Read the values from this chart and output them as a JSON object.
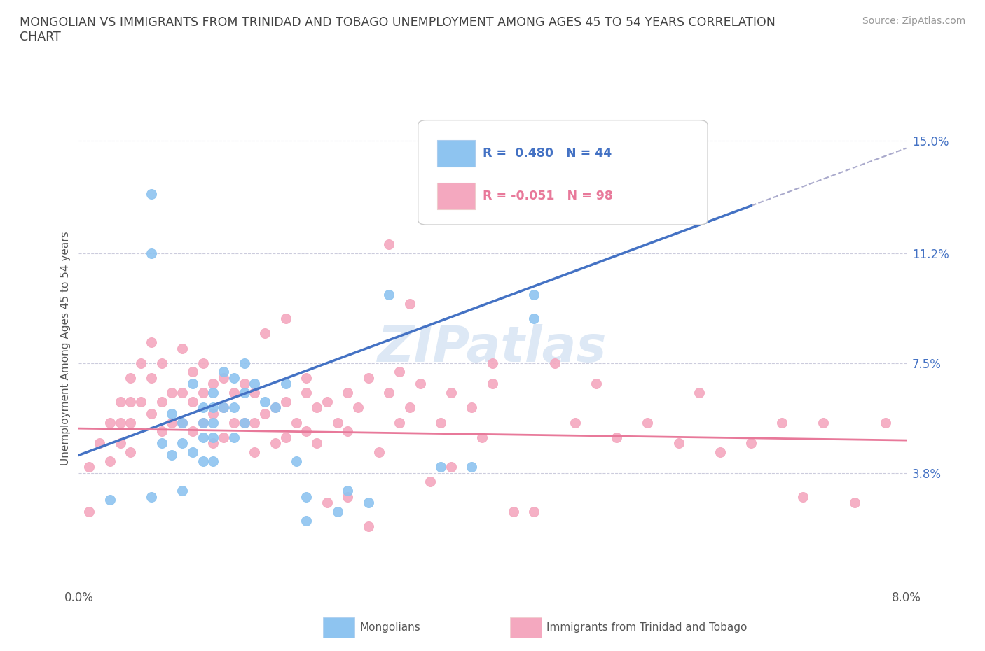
{
  "title": "MONGOLIAN VS IMMIGRANTS FROM TRINIDAD AND TOBAGO UNEMPLOYMENT AMONG AGES 45 TO 54 YEARS CORRELATION\nCHART",
  "source_text": "Source: ZipAtlas.com",
  "ylabel": "Unemployment Among Ages 45 to 54 years",
  "xlim": [
    0.0,
    0.08
  ],
  "ylim": [
    0.0,
    0.16
  ],
  "xtick_positions": [
    0.0,
    0.01,
    0.02,
    0.03,
    0.04,
    0.05,
    0.06,
    0.07,
    0.08
  ],
  "xticklabels": [
    "0.0%",
    "",
    "",
    "",
    "",
    "",
    "",
    "",
    "8.0%"
  ],
  "ytick_positions": [
    0.038,
    0.075,
    0.112,
    0.15
  ],
  "ytick_labels": [
    "3.8%",
    "7.5%",
    "11.2%",
    "15.0%"
  ],
  "mongolian_R": 0.48,
  "mongolian_N": 44,
  "tt_R": -0.051,
  "tt_N": 98,
  "mongolian_color": "#8EC4F0",
  "tt_color": "#F4A8BF",
  "mongolian_line_color": "#4472C4",
  "tt_line_color": "#E8799A",
  "background_color": "#FFFFFF",
  "mongolian_line_x0": 0.0,
  "mongolian_line_y0": 0.044,
  "mongolian_line_x1": 0.065,
  "mongolian_line_y1": 0.128,
  "tt_line_x0": 0.0,
  "tt_line_y0": 0.053,
  "tt_line_x1": 0.08,
  "tt_line_y1": 0.049,
  "mongolian_x": [
    0.003,
    0.007,
    0.007,
    0.007,
    0.008,
    0.009,
    0.009,
    0.01,
    0.01,
    0.01,
    0.011,
    0.011,
    0.012,
    0.012,
    0.012,
    0.012,
    0.013,
    0.013,
    0.013,
    0.013,
    0.013,
    0.014,
    0.014,
    0.015,
    0.015,
    0.015,
    0.016,
    0.016,
    0.016,
    0.017,
    0.018,
    0.019,
    0.02,
    0.021,
    0.022,
    0.022,
    0.025,
    0.026,
    0.028,
    0.03,
    0.035,
    0.038,
    0.044,
    0.044
  ],
  "mongolian_y": [
    0.029,
    0.132,
    0.112,
    0.03,
    0.048,
    0.058,
    0.044,
    0.055,
    0.048,
    0.032,
    0.068,
    0.045,
    0.06,
    0.055,
    0.05,
    0.042,
    0.065,
    0.06,
    0.055,
    0.05,
    0.042,
    0.072,
    0.06,
    0.07,
    0.06,
    0.05,
    0.075,
    0.065,
    0.055,
    0.068,
    0.062,
    0.06,
    0.068,
    0.042,
    0.03,
    0.022,
    0.025,
    0.032,
    0.028,
    0.098,
    0.04,
    0.04,
    0.098,
    0.09
  ],
  "tt_x": [
    0.001,
    0.001,
    0.002,
    0.003,
    0.003,
    0.004,
    0.004,
    0.004,
    0.005,
    0.005,
    0.005,
    0.005,
    0.006,
    0.006,
    0.007,
    0.007,
    0.007,
    0.008,
    0.008,
    0.008,
    0.009,
    0.009,
    0.01,
    0.01,
    0.01,
    0.011,
    0.011,
    0.011,
    0.012,
    0.012,
    0.012,
    0.013,
    0.013,
    0.013,
    0.014,
    0.014,
    0.014,
    0.015,
    0.015,
    0.016,
    0.016,
    0.017,
    0.017,
    0.017,
    0.018,
    0.019,
    0.019,
    0.02,
    0.02,
    0.021,
    0.022,
    0.022,
    0.023,
    0.023,
    0.024,
    0.025,
    0.026,
    0.026,
    0.027,
    0.028,
    0.029,
    0.03,
    0.031,
    0.031,
    0.032,
    0.033,
    0.035,
    0.036,
    0.038,
    0.039,
    0.04,
    0.042,
    0.044,
    0.046,
    0.048,
    0.05,
    0.052,
    0.055,
    0.058,
    0.06,
    0.062,
    0.065,
    0.068,
    0.07,
    0.072,
    0.075,
    0.078,
    0.03,
    0.032,
    0.02,
    0.018,
    0.04,
    0.022,
    0.024,
    0.026,
    0.028,
    0.034,
    0.036
  ],
  "tt_y": [
    0.04,
    0.025,
    0.048,
    0.055,
    0.042,
    0.062,
    0.055,
    0.048,
    0.07,
    0.062,
    0.055,
    0.045,
    0.075,
    0.062,
    0.082,
    0.07,
    0.058,
    0.075,
    0.062,
    0.052,
    0.065,
    0.055,
    0.08,
    0.065,
    0.055,
    0.072,
    0.062,
    0.052,
    0.075,
    0.065,
    0.055,
    0.068,
    0.058,
    0.048,
    0.07,
    0.06,
    0.05,
    0.065,
    0.055,
    0.068,
    0.055,
    0.065,
    0.055,
    0.045,
    0.058,
    0.06,
    0.048,
    0.062,
    0.05,
    0.055,
    0.065,
    0.052,
    0.06,
    0.048,
    0.062,
    0.055,
    0.065,
    0.052,
    0.06,
    0.07,
    0.045,
    0.065,
    0.055,
    0.072,
    0.06,
    0.068,
    0.055,
    0.065,
    0.06,
    0.05,
    0.068,
    0.025,
    0.025,
    0.075,
    0.055,
    0.068,
    0.05,
    0.055,
    0.048,
    0.065,
    0.045,
    0.048,
    0.055,
    0.03,
    0.055,
    0.028,
    0.055,
    0.115,
    0.095,
    0.09,
    0.085,
    0.075,
    0.07,
    0.028,
    0.03,
    0.02,
    0.035,
    0.04
  ]
}
